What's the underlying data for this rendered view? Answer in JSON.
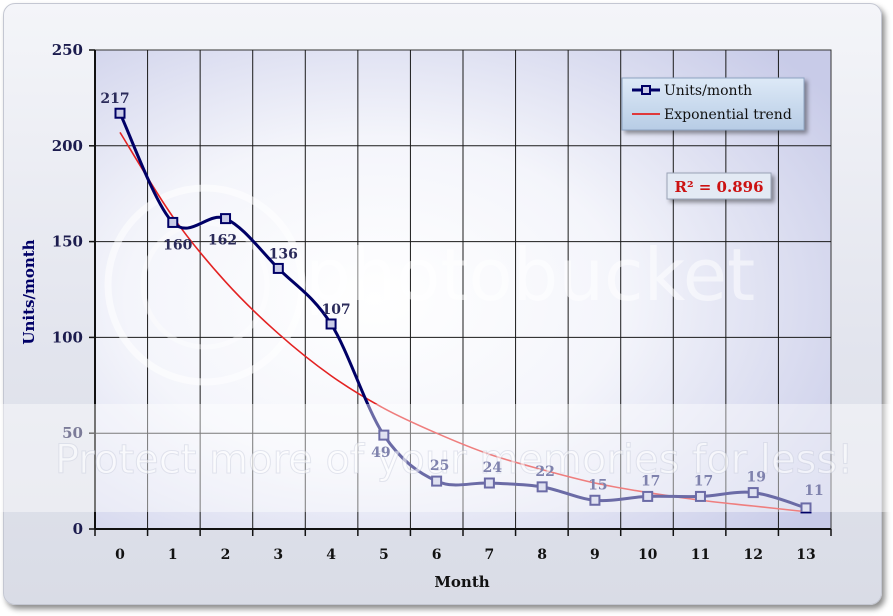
{
  "chart_data": {
    "type": "line",
    "xlabel": "Month",
    "ylabel": "Units/month",
    "xlim": [
      0,
      13
    ],
    "ylim": [
      0,
      250
    ],
    "y_ticks": [
      0,
      50,
      100,
      150,
      200,
      250
    ],
    "x_ticks": [
      0,
      1,
      2,
      3,
      4,
      5,
      6,
      7,
      8,
      9,
      10,
      11,
      12,
      13
    ],
    "grid": true,
    "legend_position": "top-right",
    "series": [
      {
        "name": "Units/month",
        "x": [
          0,
          1,
          2,
          3,
          4,
          5,
          6,
          7,
          8,
          9,
          10,
          11,
          12,
          13
        ],
        "y": [
          217,
          160,
          162,
          136,
          107,
          49,
          25,
          24,
          22,
          15,
          17,
          17,
          19,
          11
        ],
        "data_labels": [
          "217",
          "160",
          "162",
          "136",
          "107",
          "49",
          "25",
          "24",
          "22",
          "15",
          "17",
          "17",
          "19",
          "11"
        ],
        "color": "#000066",
        "marker": "square",
        "smoothed": true
      },
      {
        "name": "Exponential trend",
        "type": "trendline",
        "x": [
          0,
          1,
          2,
          3,
          4,
          5,
          6,
          7,
          8,
          9,
          10,
          11,
          12,
          13
        ],
        "y": [
          207,
          163,
          129,
          102,
          80,
          63,
          50,
          39,
          31,
          24,
          19,
          15,
          12,
          9
        ],
        "color": "#e32222"
      }
    ],
    "annotation": "R² = 0.896"
  },
  "watermark": {
    "text": "Protect more of your memories for less!",
    "logo_text": "photobucket"
  }
}
